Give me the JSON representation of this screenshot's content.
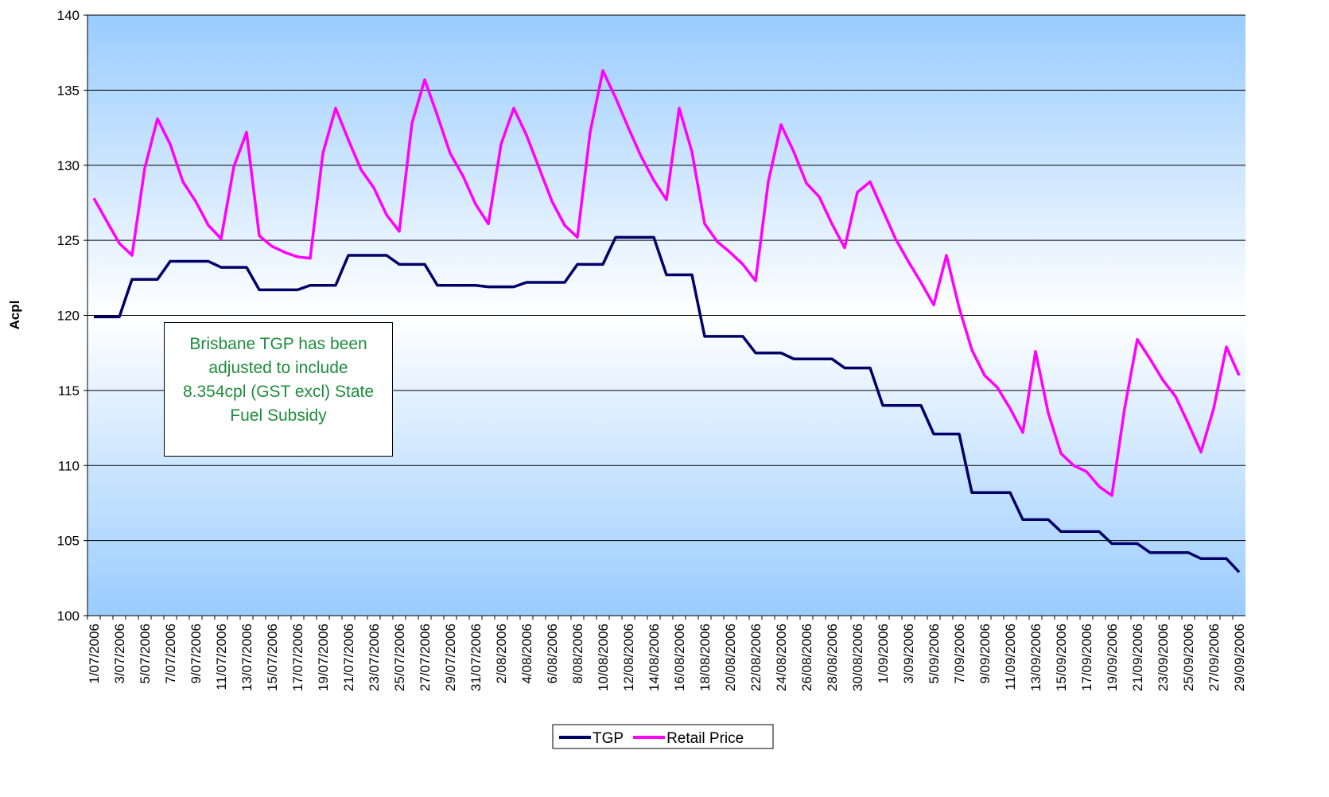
{
  "chart_data": {
    "type": "line",
    "y_label": "Acpl",
    "annotation": "Brisbane TGP has been adjusted to include 8.354cpl (GST excl) State Fuel Subsidy",
    "categories": [
      "1/07/2006",
      null,
      "3/07/2006",
      null,
      "5/07/2006",
      null,
      "7/07/2006",
      null,
      "9/07/2006",
      null,
      "11/07/2006",
      null,
      "13/07/2006",
      null,
      "15/07/2006",
      null,
      "17/07/2006",
      null,
      "19/07/2006",
      null,
      "21/07/2006",
      null,
      "23/07/2006",
      null,
      "25/07/2006",
      null,
      "27/07/2006",
      null,
      "29/07/2006",
      null,
      "31/07/2006",
      null,
      "2/08/2006",
      null,
      "4/08/2006",
      null,
      "6/08/2006",
      null,
      "8/08/2006",
      null,
      "10/08/2006",
      null,
      "12/08/2006",
      null,
      "14/08/2006",
      null,
      "16/08/2006",
      null,
      "18/08/2006",
      null,
      "20/08/2006",
      null,
      "22/08/2006",
      null,
      "24/08/2006",
      null,
      "26/08/2006",
      null,
      "28/08/2006",
      null,
      "30/08/2006",
      null,
      "1/09/2006",
      null,
      "3/09/2006",
      null,
      "5/09/2006",
      null,
      "7/09/2006",
      null,
      "9/09/2006",
      null,
      "11/09/2006",
      null,
      "13/09/2006",
      null,
      "15/09/2006",
      null,
      "17/09/2006",
      null,
      "19/09/2006",
      null,
      "21/09/2006",
      null,
      "23/09/2006",
      null,
      "25/09/2006",
      null,
      "27/09/2006",
      null,
      "29/09/2006"
    ],
    "series": [
      {
        "name": "TGP",
        "color": "#000066",
        "values": [
          119.9,
          119.9,
          119.9,
          122.4,
          122.4,
          122.4,
          123.6,
          123.6,
          123.6,
          123.6,
          123.2,
          123.2,
          123.2,
          121.7,
          121.7,
          121.7,
          121.7,
          122.0,
          122.0,
          122.0,
          124.0,
          124.0,
          124.0,
          124.0,
          123.4,
          123.4,
          123.4,
          122.0,
          122.0,
          122.0,
          122.0,
          121.9,
          121.9,
          121.9,
          122.2,
          122.2,
          122.2,
          122.2,
          123.4,
          123.4,
          123.4,
          125.2,
          125.2,
          125.2,
          125.2,
          122.7,
          122.7,
          122.7,
          118.6,
          118.6,
          118.6,
          118.6,
          117.5,
          117.5,
          117.5,
          117.1,
          117.1,
          117.1,
          117.1,
          116.5,
          116.5,
          116.5,
          114.0,
          114.0,
          114.0,
          114.0,
          112.1,
          112.1,
          112.1,
          108.2,
          108.2,
          108.2,
          108.2,
          106.4,
          106.4,
          106.4,
          105.6,
          105.6,
          105.6,
          105.6,
          104.8,
          104.8,
          104.8,
          104.2,
          104.2,
          104.2,
          104.2,
          103.8,
          103.8,
          103.8,
          102.9
        ]
      },
      {
        "name": "Retail Price",
        "color": "#ff00ff",
        "values": [
          127.8,
          126.3,
          124.8,
          124.0,
          129.8,
          133.1,
          131.4,
          128.9,
          127.6,
          126.0,
          125.1,
          129.9,
          132.2,
          125.3,
          124.6,
          124.2,
          123.9,
          123.8,
          130.8,
          133.8,
          131.7,
          129.7,
          128.5,
          126.7,
          125.6,
          132.8,
          135.7,
          133.3,
          130.8,
          129.3,
          127.4,
          126.1,
          131.4,
          133.8,
          132.0,
          129.8,
          127.6,
          126.0,
          125.2,
          132.2,
          136.3,
          134.5,
          132.5,
          130.6,
          129.0,
          127.7,
          133.8,
          130.9,
          126.1,
          124.9,
          124.2,
          123.4,
          122.3,
          128.9,
          132.7,
          130.9,
          128.8,
          127.9,
          126.1,
          124.5,
          128.2,
          128.9,
          127.0,
          125.1,
          123.6,
          122.2,
          120.7,
          124.0,
          120.5,
          117.7,
          116.0,
          115.2,
          113.8,
          112.2,
          117.6,
          113.5,
          110.8,
          110.0,
          109.6,
          108.6,
          108.0,
          113.8,
          118.4,
          117.1,
          115.7,
          114.6,
          112.8,
          110.9,
          113.8,
          117.9,
          116.0
        ]
      }
    ],
    "ylim": [
      100,
      140
    ],
    "yticks": [
      100,
      105,
      110,
      115,
      120,
      125,
      130,
      135,
      140
    ],
    "grid": true
  }
}
